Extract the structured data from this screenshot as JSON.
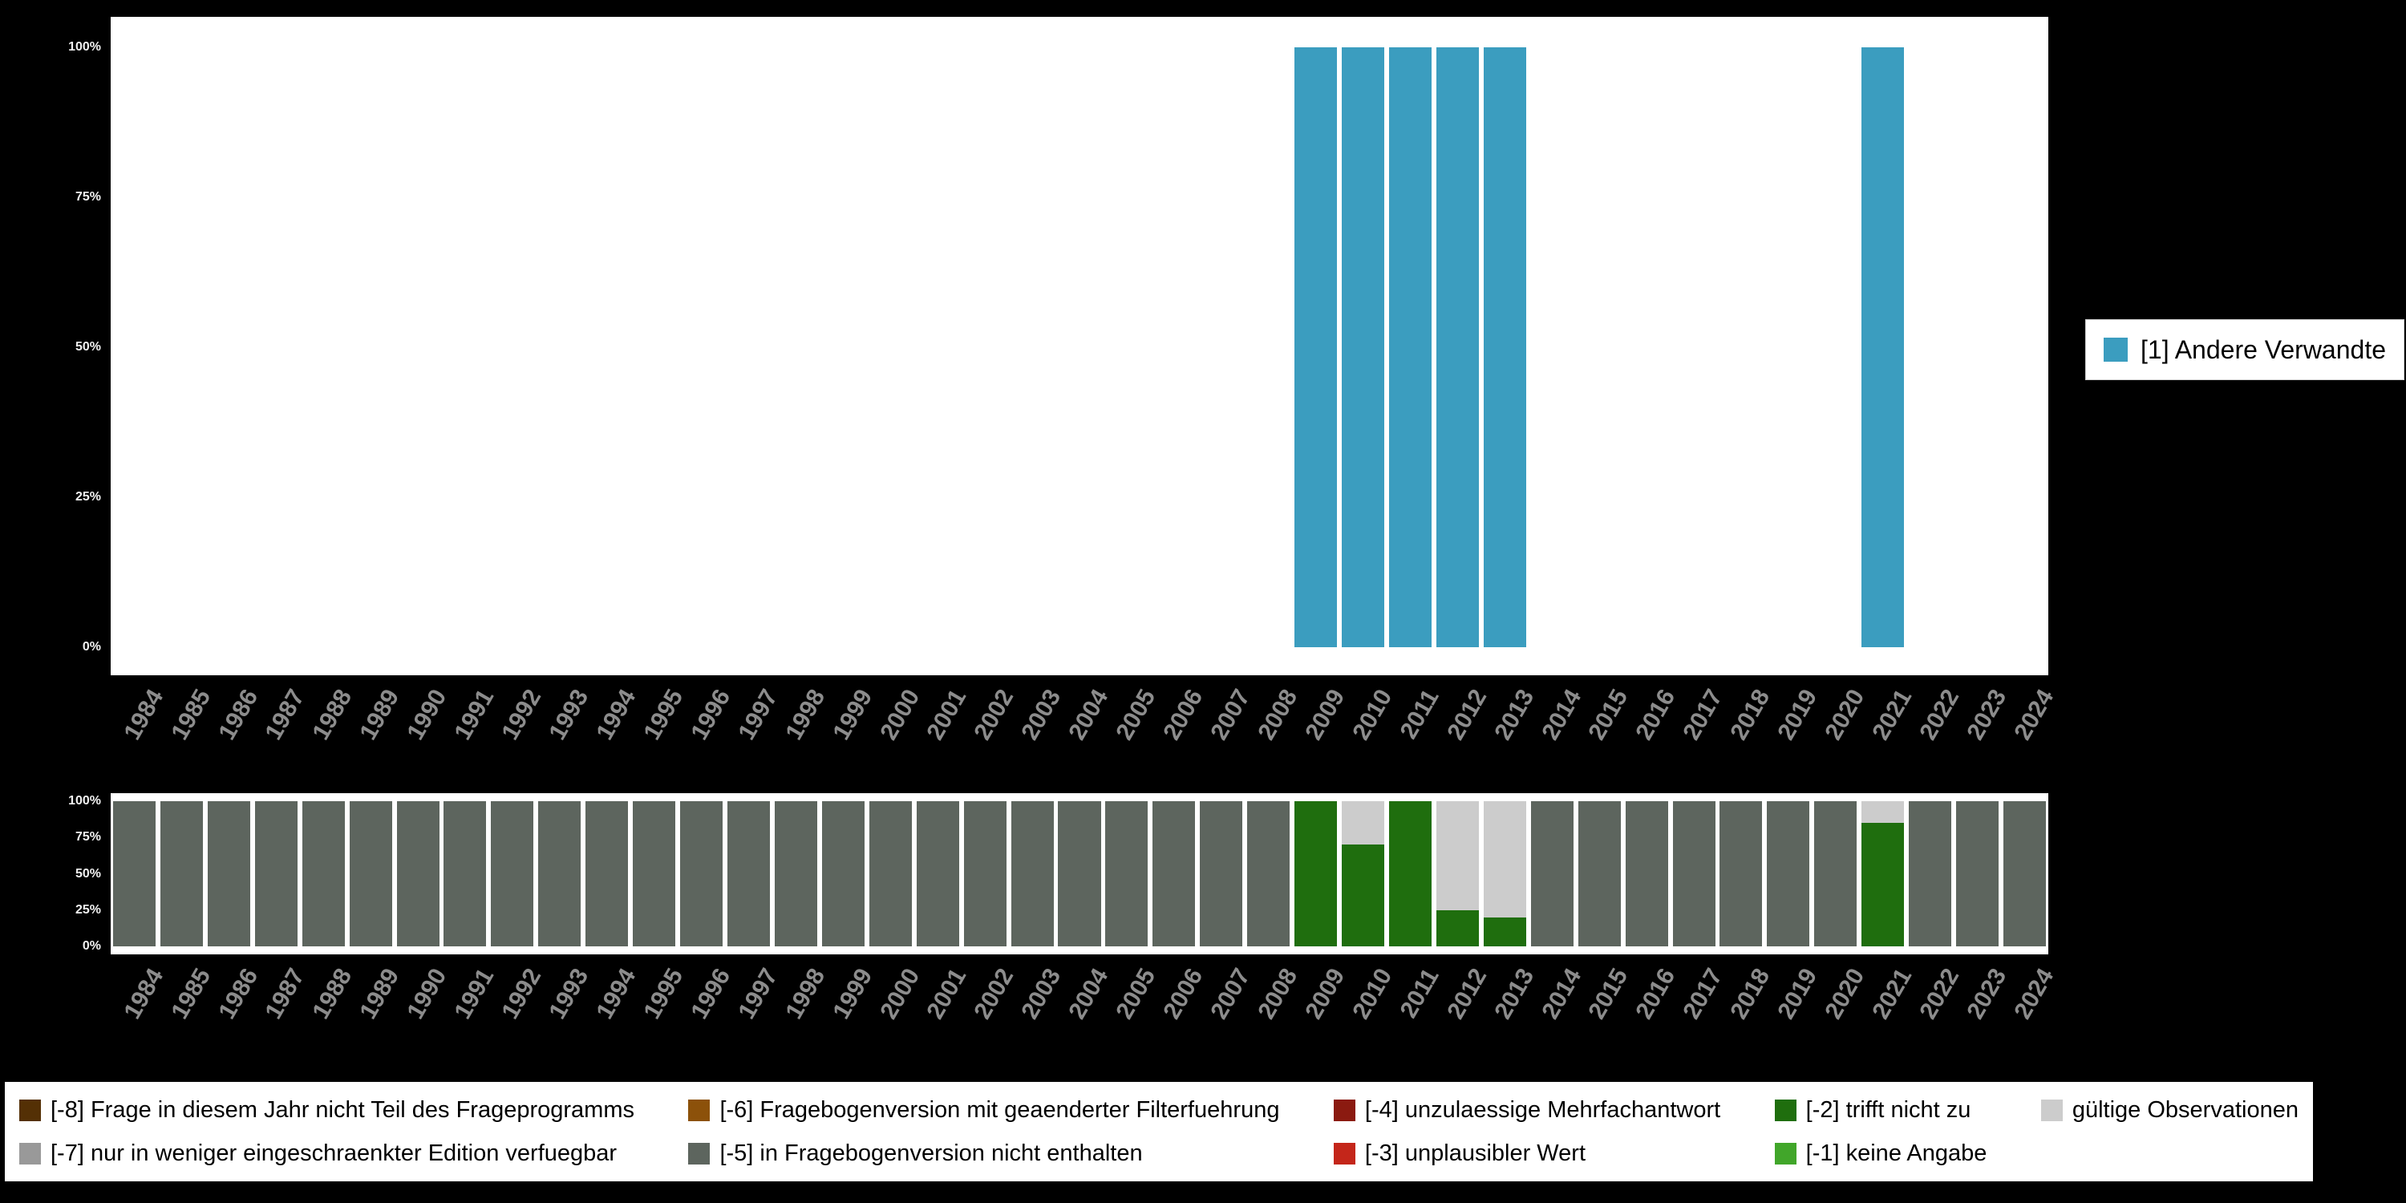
{
  "colors": {
    "background": "#000000",
    "panel": "#ffffff",
    "ytick_text": "#f0f0f0",
    "xtick_text": "#8c8c8c",
    "teal": "#3b9dbf",
    "m8": "#543005",
    "m7": "#999999",
    "m6": "#8c510a",
    "m5": "#5d655e",
    "m4": "#8b1a10",
    "m3": "#c4261a",
    "m2": "#1f6e0e",
    "m1": "#41a62a",
    "valid": "#cccccc"
  },
  "yticks": [
    "100%",
    "75%",
    "50%",
    "25%",
    "0%"
  ],
  "top_legend": {
    "label": "[1] Andere Verwandte",
    "color": "teal"
  },
  "missings_legend": {
    "items": [
      {
        "code": "-8",
        "label": "[-8] Frage in diesem Jahr nicht Teil des Frageprogramms",
        "color": "m8"
      },
      {
        "code": "-7",
        "label": "[-7] nur in weniger eingeschraenkter Edition verfuegbar",
        "color": "m7"
      },
      {
        "code": "-6",
        "label": "[-6] Fragebogenversion mit geaenderter Filterfuehrung",
        "color": "m6"
      },
      {
        "code": "-5",
        "label": "[-5] in Fragebogenversion nicht enthalten",
        "color": "m5"
      },
      {
        "code": "-4",
        "label": "[-4] unzulaessige Mehrfachantwort",
        "color": "m4"
      },
      {
        "code": "-3",
        "label": "[-3] unplausibler Wert",
        "color": "m3"
      },
      {
        "code": "-2",
        "label": "[-2] trifft nicht zu",
        "color": "m2"
      },
      {
        "code": "-1",
        "label": "[-1] keine Angabe",
        "color": "m1"
      },
      {
        "code": "valid",
        "label": "gültige Observationen",
        "color": "valid"
      }
    ]
  },
  "chart_data": [
    {
      "type": "bar",
      "id": "value-distribution",
      "title": "",
      "xlabel": "",
      "ylabel": "percent",
      "ylim": [
        0,
        100
      ],
      "grid": false,
      "legend_position": "right",
      "categories": [
        "1984",
        "1985",
        "1986",
        "1987",
        "1988",
        "1989",
        "1990",
        "1991",
        "1992",
        "1993",
        "1994",
        "1995",
        "1996",
        "1997",
        "1998",
        "1999",
        "2000",
        "2001",
        "2002",
        "2003",
        "2004",
        "2005",
        "2006",
        "2007",
        "2008",
        "2009",
        "2010",
        "2011",
        "2012",
        "2013",
        "2014",
        "2015",
        "2016",
        "2017",
        "2018",
        "2019",
        "2020",
        "2021",
        "2022",
        "2023",
        "2024"
      ],
      "series": [
        {
          "name": "[1] Andere Verwandte",
          "color": "teal",
          "values": [
            0,
            0,
            0,
            0,
            0,
            0,
            0,
            0,
            0,
            0,
            0,
            0,
            0,
            0,
            0,
            0,
            0,
            0,
            0,
            0,
            0,
            0,
            0,
            0,
            0,
            100,
            100,
            100,
            100,
            100,
            0,
            0,
            0,
            0,
            0,
            0,
            0,
            100,
            0,
            0,
            0
          ]
        }
      ]
    },
    {
      "type": "bar",
      "id": "missings-distribution",
      "stacked": true,
      "title": "",
      "xlabel": "",
      "ylabel": "percent",
      "ylim": [
        0,
        100
      ],
      "grid": false,
      "legend_position": "bottom",
      "categories": [
        "1984",
        "1985",
        "1986",
        "1987",
        "1988",
        "1989",
        "1990",
        "1991",
        "1992",
        "1993",
        "1994",
        "1995",
        "1996",
        "1997",
        "1998",
        "1999",
        "2000",
        "2001",
        "2002",
        "2003",
        "2004",
        "2005",
        "2006",
        "2007",
        "2008",
        "2009",
        "2010",
        "2011",
        "2012",
        "2013",
        "2014",
        "2015",
        "2016",
        "2017",
        "2018",
        "2019",
        "2020",
        "2021",
        "2022",
        "2023",
        "2024"
      ],
      "series": [
        {
          "name": "[-2] trifft nicht zu",
          "color": "m2",
          "values": [
            0,
            0,
            0,
            0,
            0,
            0,
            0,
            0,
            0,
            0,
            0,
            0,
            0,
            0,
            0,
            0,
            0,
            0,
            0,
            0,
            0,
            0,
            0,
            0,
            0,
            100,
            70,
            100,
            25,
            20,
            0,
            0,
            0,
            0,
            0,
            0,
            0,
            85,
            0,
            0,
            0
          ]
        },
        {
          "name": "[-5] in Fragebogenversion nicht enthalten",
          "color": "m5",
          "values": [
            100,
            100,
            100,
            100,
            100,
            100,
            100,
            100,
            100,
            100,
            100,
            100,
            100,
            100,
            100,
            100,
            100,
            100,
            100,
            100,
            100,
            100,
            100,
            100,
            100,
            0,
            0,
            0,
            0,
            0,
            100,
            100,
            100,
            100,
            100,
            100,
            100,
            0,
            100,
            100,
            100
          ]
        },
        {
          "name": "gültige Observationen",
          "color": "valid",
          "values": [
            0,
            0,
            0,
            0,
            0,
            0,
            0,
            0,
            0,
            0,
            0,
            0,
            0,
            0,
            0,
            0,
            0,
            0,
            0,
            0,
            0,
            0,
            0,
            0,
            0,
            0,
            30,
            0,
            75,
            80,
            0,
            0,
            0,
            0,
            0,
            0,
            0,
            15,
            0,
            0,
            0
          ]
        }
      ]
    }
  ]
}
